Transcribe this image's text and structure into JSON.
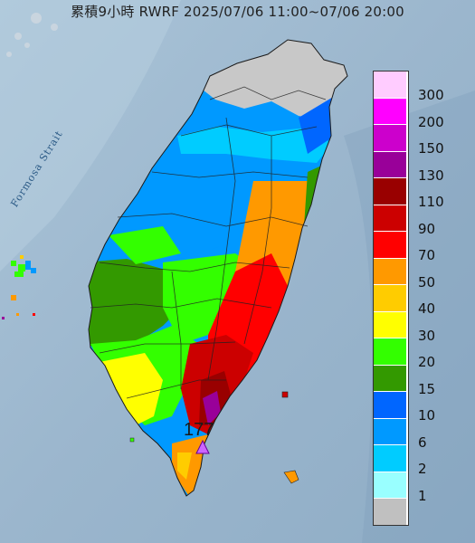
{
  "title": "累積9小時 RWRF 2025/07/06 11:00~07/06 20:00",
  "strait_label": "Formosa Strait",
  "peak_label": "177",
  "legend": [
    {
      "label": "300",
      "color": "#ffccff"
    },
    {
      "label": "200",
      "color": "#ff00ff"
    },
    {
      "label": "150",
      "color": "#cc00cc"
    },
    {
      "label": "130",
      "color": "#990099"
    },
    {
      "label": "110",
      "color": "#990000"
    },
    {
      "label": "90",
      "color": "#cc0000"
    },
    {
      "label": "70",
      "color": "#ff0000"
    },
    {
      "label": "50",
      "color": "#ff9900"
    },
    {
      "label": "40",
      "color": "#ffcc00"
    },
    {
      "label": "30",
      "color": "#ffff00"
    },
    {
      "label": "20",
      "color": "#33ff00"
    },
    {
      "label": "15",
      "color": "#339900"
    },
    {
      "label": "10",
      "color": "#0066ff"
    },
    {
      "label": "6",
      "color": "#0099ff"
    },
    {
      "label": "2",
      "color": "#00ccff"
    },
    {
      "label": "1",
      "color": "#99ffff"
    },
    {
      "label": "",
      "color": "#c0c0c0"
    }
  ]
}
